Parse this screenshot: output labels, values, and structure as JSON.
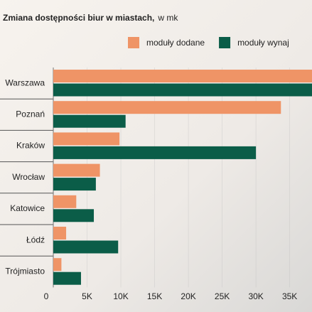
{
  "chart_data": {
    "type": "hbar",
    "title": "Zmiana dostępności biur w miastach,",
    "subtitle": "w mk",
    "categories": [
      "Warszawa",
      "Poznań",
      "Kraków",
      "Wrocław",
      "Katowice",
      "Łódź",
      "Trójmiasto"
    ],
    "series": [
      {
        "name": "moduły dodane",
        "color": "#ef9466",
        "values": [
          40000,
          33700,
          9800,
          6900,
          3400,
          1900,
          1200
        ]
      },
      {
        "name": "moduły wynaj",
        "color": "#0b5d48",
        "values": [
          39000,
          10700,
          30000,
          6300,
          6000,
          9600,
          4100
        ]
      }
    ],
    "xlim": [
      0,
      38300
    ],
    "xticks": [
      0,
      {
        "value": 5000,
        "label": "5K"
      },
      {
        "value": 10000,
        "label": "10K"
      },
      {
        "value": 15000,
        "label": "15K"
      },
      {
        "value": 20000,
        "label": "20K"
      },
      {
        "value": 25000,
        "label": "25K"
      },
      {
        "value": 30000,
        "label": "30K"
      },
      {
        "value": 35000,
        "label": "35K"
      }
    ]
  }
}
